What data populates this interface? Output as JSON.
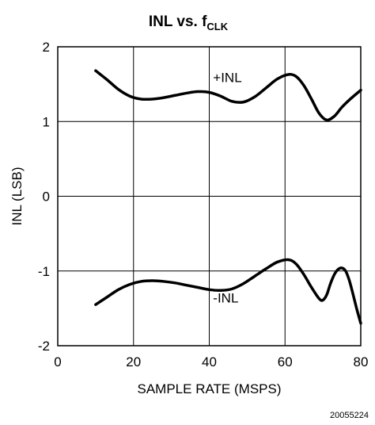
{
  "chart_data": {
    "type": "line",
    "title_main": "INL vs. f",
    "title_sub": "CLK",
    "xlabel": "SAMPLE RATE (MSPS)",
    "ylabel": "INL (LSB)",
    "xlim": [
      0,
      80
    ],
    "ylim": [
      -2,
      2
    ],
    "x_ticks": [
      0,
      20,
      40,
      60,
      80
    ],
    "y_ticks": [
      -2,
      -1,
      0,
      1,
      2
    ],
    "grid": true,
    "figure_id": "20055224",
    "series": [
      {
        "name": "+INL",
        "label_at": [
          41,
          1.53
        ],
        "points": [
          [
            10,
            1.68
          ],
          [
            13,
            1.56
          ],
          [
            16,
            1.43
          ],
          [
            19,
            1.34
          ],
          [
            22,
            1.3
          ],
          [
            25,
            1.3
          ],
          [
            28,
            1.32
          ],
          [
            31,
            1.35
          ],
          [
            34,
            1.38
          ],
          [
            37,
            1.4
          ],
          [
            40,
            1.39
          ],
          [
            43,
            1.34
          ],
          [
            46,
            1.27
          ],
          [
            49,
            1.26
          ],
          [
            52,
            1.33
          ],
          [
            55,
            1.45
          ],
          [
            58,
            1.57
          ],
          [
            61,
            1.63
          ],
          [
            63,
            1.6
          ],
          [
            65,
            1.48
          ],
          [
            67,
            1.3
          ],
          [
            69,
            1.11
          ],
          [
            71,
            1.02
          ],
          [
            73,
            1.07
          ],
          [
            75,
            1.19
          ],
          [
            77,
            1.29
          ],
          [
            80,
            1.42
          ]
        ]
      },
      {
        "name": "-INL",
        "label_at": [
          41,
          -1.42
        ],
        "points": [
          [
            10,
            -1.45
          ],
          [
            13,
            -1.35
          ],
          [
            16,
            -1.25
          ],
          [
            19,
            -1.18
          ],
          [
            22,
            -1.14
          ],
          [
            25,
            -1.13
          ],
          [
            28,
            -1.14
          ],
          [
            31,
            -1.16
          ],
          [
            34,
            -1.19
          ],
          [
            37,
            -1.22
          ],
          [
            40,
            -1.25
          ],
          [
            43,
            -1.26
          ],
          [
            46,
            -1.24
          ],
          [
            49,
            -1.17
          ],
          [
            52,
            -1.07
          ],
          [
            55,
            -0.97
          ],
          [
            58,
            -0.88
          ],
          [
            61,
            -0.85
          ],
          [
            63,
            -0.91
          ],
          [
            65,
            -1.05
          ],
          [
            67,
            -1.22
          ],
          [
            69,
            -1.37
          ],
          [
            70,
            -1.39
          ],
          [
            71,
            -1.32
          ],
          [
            72,
            -1.17
          ],
          [
            73,
            -1.05
          ],
          [
            74,
            -0.98
          ],
          [
            75,
            -0.96
          ],
          [
            76,
            -1.0
          ],
          [
            77,
            -1.13
          ],
          [
            78,
            -1.32
          ],
          [
            79,
            -1.52
          ],
          [
            80,
            -1.7
          ]
        ]
      }
    ]
  }
}
